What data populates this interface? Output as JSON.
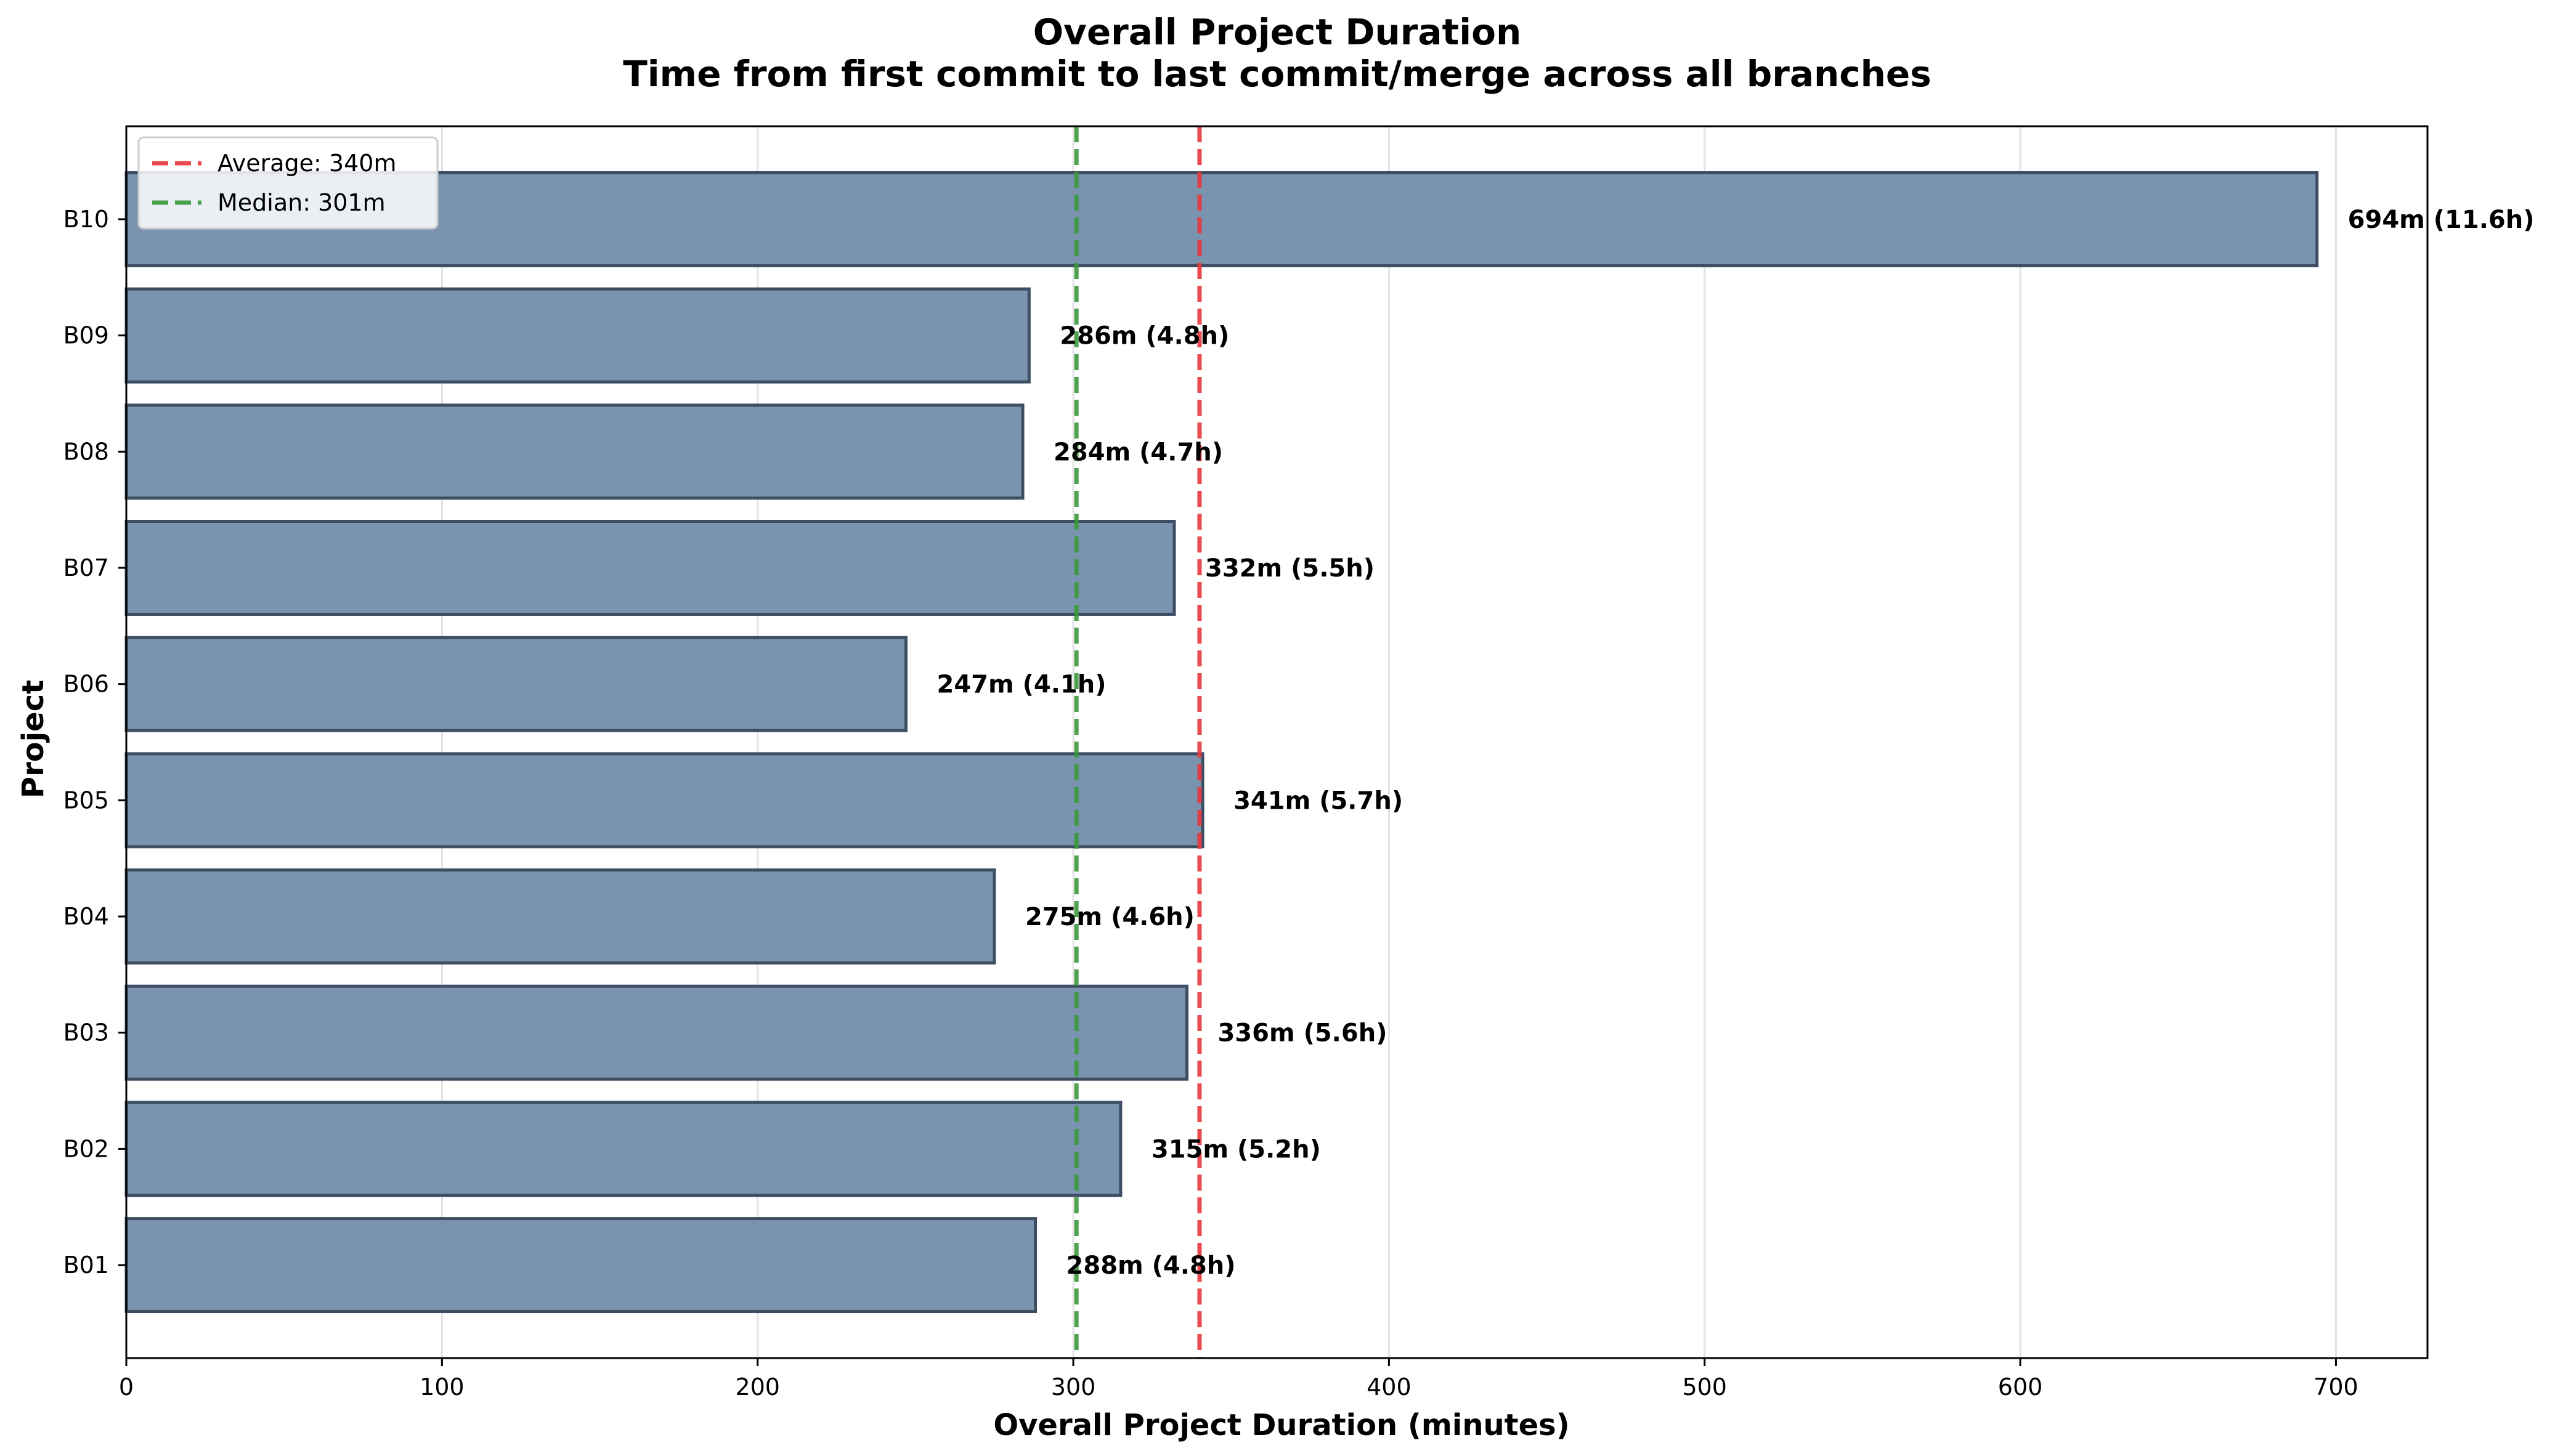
{
  "chart_data": {
    "type": "bar",
    "orientation": "horizontal",
    "title": "Overall Project Duration",
    "subtitle": "Time from first commit to last commit/merge across all branches",
    "xlabel": "Overall Project Duration (minutes)",
    "ylabel": "Project",
    "categories": [
      "B01",
      "B02",
      "B03",
      "B04",
      "B05",
      "B06",
      "B07",
      "B08",
      "B09",
      "B10"
    ],
    "values": [
      288,
      315,
      336,
      275,
      341,
      247,
      332,
      284,
      286,
      694
    ],
    "data_labels": [
      "288m (4.8h)",
      "315m (5.2h)",
      "336m (5.6h)",
      "275m (4.6h)",
      "341m (5.7h)",
      "247m (4.1h)",
      "332m (5.5h)",
      "284m (4.7h)",
      "286m (4.8h)",
      "694m (11.6h)"
    ],
    "xlim": [
      0,
      729
    ],
    "xticks": [
      0,
      100,
      200,
      300,
      400,
      500,
      600,
      700
    ],
    "grid": "x",
    "bar_color": "#7a94b0",
    "bar_edge_color": "#3d4e63",
    "reference_lines": [
      {
        "label": "Average: 340m",
        "value": 340,
        "color": "#e8383b",
        "style": "dashed"
      },
      {
        "label": "Median: 301m",
        "value": 301,
        "color": "#3a9a3a",
        "style": "dashed"
      }
    ],
    "legend_position": "top-left"
  }
}
